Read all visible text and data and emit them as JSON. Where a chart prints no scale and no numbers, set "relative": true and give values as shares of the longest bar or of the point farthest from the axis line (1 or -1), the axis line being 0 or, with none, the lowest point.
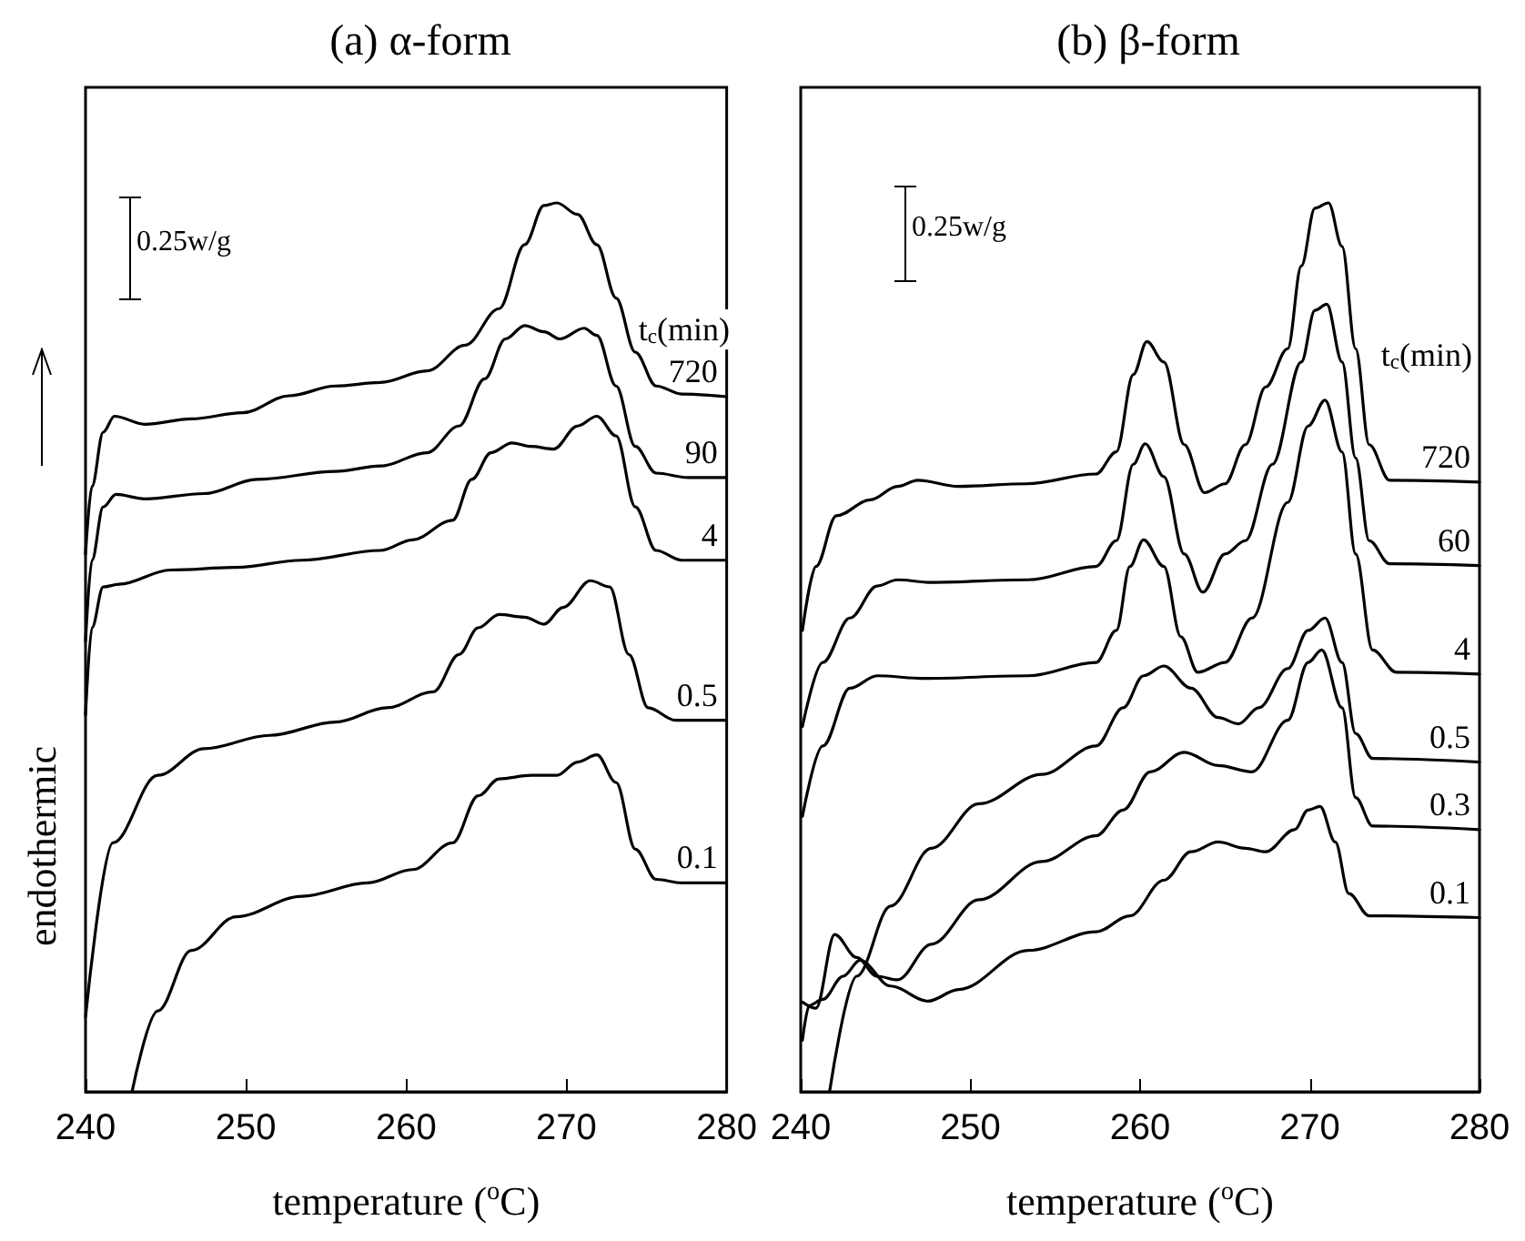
{
  "chart_data": [
    {
      "type": "line",
      "relative": true,
      "title": "(a) α-form",
      "xlabel": "temperature ($^{o}$C)",
      "ylabel": "endothermic",
      "legend_title": "t$_{c}$(min)",
      "annotations": [
        "0.25w/g"
      ],
      "xlim": [
        240,
        280
      ],
      "xticks": [
        240,
        250,
        260,
        270,
        280
      ],
      "marker": "none",
      "line_style": "solid",
      "series": [
        {
          "name": "720",
          "color": "#000000",
          "x": [
            240.0,
            240.4,
            241.1,
            241.8,
            243.7,
            246.6,
            249.8,
            252.7,
            255.6,
            258.4,
            261.3,
            263.7,
            265.8,
            267.4,
            268.6,
            269.4,
            270.7,
            271.9,
            273.1,
            274.3,
            275.6,
            277.2,
            280.0
          ],
          "values": [
            0.605,
            0.681,
            0.742,
            0.76,
            0.751,
            0.757,
            0.764,
            0.783,
            0.794,
            0.798,
            0.811,
            0.84,
            0.881,
            0.953,
            0.997,
            1.0,
            0.987,
            0.953,
            0.893,
            0.832,
            0.794,
            0.785,
            0.782
          ]
        },
        {
          "name": "90",
          "color": "#000000",
          "x": [
            240.0,
            240.4,
            241.1,
            241.9,
            243.7,
            247.4,
            250.7,
            255.6,
            258.4,
            261.3,
            263.3,
            264.9,
            266.2,
            267.4,
            268.6,
            269.6,
            271.1,
            271.9,
            273.1,
            274.3,
            275.6,
            277.6,
            280.0
          ],
          "values": [
            0.507,
            0.598,
            0.658,
            0.672,
            0.667,
            0.673,
            0.689,
            0.698,
            0.704,
            0.719,
            0.749,
            0.802,
            0.847,
            0.862,
            0.855,
            0.847,
            0.859,
            0.851,
            0.794,
            0.726,
            0.696,
            0.691,
            0.691
          ]
        },
        {
          "name": "4",
          "color": "#000000",
          "x": [
            240.0,
            240.4,
            241.1,
            242.1,
            245.3,
            249.4,
            253.5,
            258.4,
            260.4,
            262.9,
            264.1,
            265.3,
            266.6,
            267.8,
            269.2,
            270.7,
            271.9,
            273.1,
            274.3,
            275.6,
            277.2,
            280.0
          ],
          "values": [
            0.424,
            0.522,
            0.568,
            0.571,
            0.587,
            0.59,
            0.598,
            0.609,
            0.621,
            0.643,
            0.689,
            0.719,
            0.73,
            0.726,
            0.723,
            0.749,
            0.76,
            0.738,
            0.658,
            0.609,
            0.598,
            0.598
          ]
        },
        {
          "name": "0.5",
          "color": "#000000",
          "x": [
            240.0,
            241.7,
            244.5,
            247.4,
            251.5,
            255.6,
            258.8,
            261.7,
            263.3,
            264.5,
            265.8,
            267.4,
            268.6,
            269.8,
            271.5,
            272.7,
            273.9,
            275.1,
            276.8,
            280.0
          ],
          "values": [
            0.084,
            0.28,
            0.356,
            0.386,
            0.401,
            0.416,
            0.432,
            0.45,
            0.492,
            0.522,
            0.537,
            0.534,
            0.526,
            0.545,
            0.575,
            0.568,
            0.492,
            0.432,
            0.418,
            0.418
          ]
        },
        {
          "name": "0.1",
          "color": "#000000",
          "x": [
            242.9,
            244.5,
            246.6,
            249.4,
            253.5,
            257.6,
            260.4,
            262.9,
            264.5,
            265.8,
            267.8,
            269.4,
            270.7,
            271.9,
            273.1,
            274.3,
            275.6,
            277.2,
            280.0
          ],
          "values": [
            0.0,
            0.091,
            0.159,
            0.197,
            0.22,
            0.235,
            0.25,
            0.28,
            0.333,
            0.352,
            0.356,
            0.356,
            0.371,
            0.379,
            0.348,
            0.273,
            0.239,
            0.235,
            0.235
          ]
        }
      ]
    },
    {
      "type": "line",
      "relative": true,
      "title": "(b) β-form",
      "xlabel": "temperature ($^{o}$C)",
      "legend_title": "t$_{c}$(min)",
      "annotations": [
        "0.25w/g"
      ],
      "xlim": [
        240,
        280
      ],
      "xticks": [
        240,
        250,
        260,
        270,
        280
      ],
      "marker": "none",
      "line_style": "solid",
      "series": [
        {
          "name": "720",
          "color": "#000000",
          "x": [
            240.1,
            240.9,
            242.1,
            244.1,
            245.7,
            246.9,
            249.3,
            253.3,
            257.4,
            258.6,
            259.6,
            260.4,
            261.4,
            262.6,
            263.8,
            265.0,
            266.2,
            267.4,
            268.7,
            269.5,
            270.3,
            271.1,
            271.9,
            272.7,
            273.5,
            274.7,
            280.0
          ],
          "values": [
            0.519,
            0.591,
            0.648,
            0.666,
            0.681,
            0.688,
            0.681,
            0.684,
            0.695,
            0.72,
            0.807,
            0.844,
            0.821,
            0.728,
            0.674,
            0.684,
            0.728,
            0.793,
            0.836,
            0.929,
            0.994,
            1.0,
            0.951,
            0.836,
            0.728,
            0.688,
            0.686
          ]
        },
        {
          "name": "60",
          "color": "#000000",
          "x": [
            240.1,
            241.3,
            242.9,
            244.5,
            245.7,
            247.7,
            253.4,
            257.4,
            258.6,
            259.6,
            260.3,
            261.4,
            262.6,
            263.7,
            265.0,
            266.2,
            267.8,
            269.5,
            270.3,
            271.0,
            271.9,
            272.7,
            273.5,
            274.7,
            280.0
          ],
          "values": [
            0.411,
            0.483,
            0.533,
            0.569,
            0.576,
            0.573,
            0.576,
            0.591,
            0.62,
            0.706,
            0.729,
            0.692,
            0.605,
            0.562,
            0.605,
            0.62,
            0.706,
            0.821,
            0.879,
            0.886,
            0.821,
            0.713,
            0.62,
            0.594,
            0.592
          ]
        },
        {
          "name": "4",
          "color": "#000000",
          "x": [
            240.1,
            241.3,
            242.9,
            244.5,
            247.3,
            253.4,
            257.4,
            258.6,
            259.4,
            260.2,
            261.4,
            262.4,
            263.4,
            265.0,
            266.6,
            268.7,
            269.9,
            270.9,
            271.9,
            272.7,
            273.7,
            275.1,
            280.0
          ],
          "values": [
            0.31,
            0.389,
            0.454,
            0.468,
            0.465,
            0.468,
            0.483,
            0.519,
            0.591,
            0.621,
            0.591,
            0.512,
            0.472,
            0.483,
            0.533,
            0.663,
            0.749,
            0.778,
            0.72,
            0.605,
            0.497,
            0.472,
            0.47
          ]
        },
        {
          "name": "0.5",
          "color": "#000000",
          "x": [
            241.7,
            243.3,
            245.3,
            247.7,
            250.5,
            254.2,
            257.4,
            259.0,
            260.2,
            261.4,
            263.0,
            264.6,
            265.8,
            267.0,
            268.7,
            269.9,
            270.9,
            271.9,
            272.7,
            273.7,
            280.0
          ],
          "values": [
            0.0,
            0.13,
            0.209,
            0.274,
            0.324,
            0.357,
            0.389,
            0.432,
            0.468,
            0.479,
            0.454,
            0.421,
            0.414,
            0.432,
            0.476,
            0.519,
            0.533,
            0.483,
            0.403,
            0.375,
            0.371
          ]
        },
        {
          "name": "0.3",
          "color": "#000000",
          "x": [
            240.1,
            240.9,
            242.0,
            243.3,
            244.5,
            245.7,
            247.7,
            250.5,
            254.2,
            257.4,
            259.0,
            260.6,
            262.6,
            264.6,
            266.6,
            268.7,
            269.9,
            270.7,
            271.9,
            272.7,
            273.7,
            280.0
          ],
          "values": [
            0.101,
            0.094,
            0.177,
            0.151,
            0.13,
            0.126,
            0.166,
            0.216,
            0.259,
            0.288,
            0.317,
            0.36,
            0.382,
            0.367,
            0.36,
            0.418,
            0.483,
            0.497,
            0.432,
            0.331,
            0.299,
            0.295
          ]
        },
        {
          "name": "0.1",
          "color": "#000000",
          "x": [
            240.1,
            240.5,
            241.3,
            242.5,
            243.5,
            245.3,
            247.5,
            249.3,
            253.4,
            257.4,
            259.4,
            261.4,
            263.0,
            264.6,
            266.2,
            267.4,
            269.1,
            269.9,
            270.6,
            271.5,
            272.3,
            273.5,
            280.0
          ],
          "values": [
            0.058,
            0.097,
            0.104,
            0.13,
            0.148,
            0.119,
            0.102,
            0.115,
            0.159,
            0.18,
            0.198,
            0.238,
            0.27,
            0.281,
            0.274,
            0.27,
            0.295,
            0.317,
            0.321,
            0.281,
            0.223,
            0.198,
            0.196
          ]
        }
      ]
    }
  ]
}
